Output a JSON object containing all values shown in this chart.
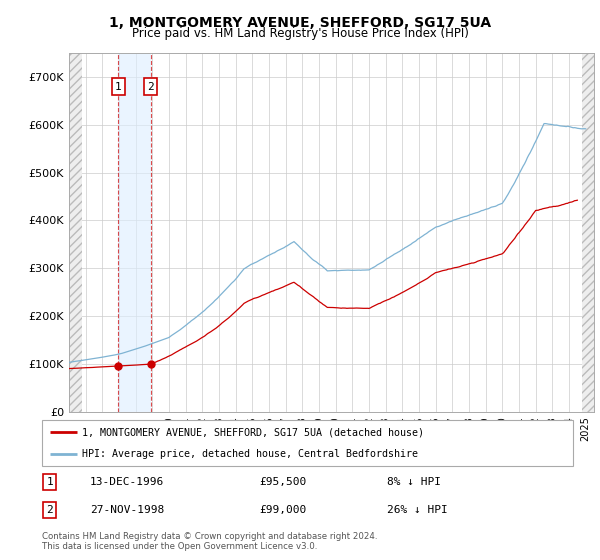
{
  "title": "1, MONTGOMERY AVENUE, SHEFFORD, SG17 5UA",
  "subtitle": "Price paid vs. HM Land Registry's House Price Index (HPI)",
  "sale1_price": 95500,
  "sale1_date_str": "13-DEC-1996",
  "sale1_price_str": "£95,500",
  "sale1_hpi_pct": "8% ↓ HPI",
  "sale2_price": 99000,
  "sale2_date_str": "27-NOV-1998",
  "sale2_price_str": "£99,000",
  "sale2_hpi_pct": "26% ↓ HPI",
  "legend_line1": "1, MONTGOMERY AVENUE, SHEFFORD, SG17 5UA (detached house)",
  "legend_line2": "HPI: Average price, detached house, Central Bedfordshire",
  "footer1": "Contains HM Land Registry data © Crown copyright and database right 2024.",
  "footer2": "This data is licensed under the Open Government Licence v3.0.",
  "bg_color": "#ffffff",
  "plot_bg_color": "#ffffff",
  "grid_color": "#cccccc",
  "red_color": "#cc0000",
  "blue_color": "#7fb3d3",
  "sale1_x": 1996.958,
  "sale2_x": 1998.9
}
